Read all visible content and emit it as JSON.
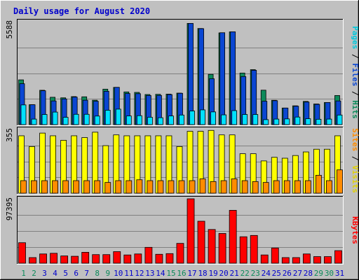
{
  "chart_data": {
    "type": "bar",
    "title": "Daily usage for August 2020",
    "days": [
      "1",
      "2",
      "3",
      "4",
      "5",
      "6",
      "7",
      "8",
      "9",
      "10",
      "11",
      "12",
      "13",
      "14",
      "15",
      "16",
      "17",
      "18",
      "19",
      "20",
      "21",
      "22",
      "23",
      "24",
      "25",
      "26",
      "27",
      "28",
      "29",
      "30",
      "31"
    ],
    "weekend_days": [
      "1",
      "2",
      "8",
      "9",
      "15",
      "16",
      "22",
      "23",
      "29",
      "30"
    ],
    "panels": [
      {
        "name": "traffic",
        "ymax_label": "5588",
        "ymax": 5588,
        "series": [
          {
            "name": "Hits",
            "color": "#0c8a5a",
            "values": [
              2430,
              1080,
              1865,
              1485,
              1455,
              1520,
              1510,
              1325,
              1925,
              2020,
              1775,
              1750,
              1635,
              1645,
              1655,
              1710,
              5495,
              5220,
              2730,
              4980,
              5035,
              2800,
              2985,
              1870,
              1320,
              900,
              1020,
              1260,
              1120,
              1200,
              1580
            ]
          },
          {
            "name": "Files",
            "color": "#0a46d2",
            "values": [
              2220,
              1080,
              1840,
              1285,
              1395,
              1495,
              1325,
              1270,
              1810,
              2025,
              1690,
              1680,
              1580,
              1585,
              1630,
              1700,
              5495,
              5210,
              2490,
              4990,
              5040,
              2610,
              2950,
              1270,
              1300,
              900,
              1000,
              1225,
              1100,
              1200,
              1285
            ]
          },
          {
            "name": "Pages",
            "color": "#00e0ff",
            "values": [
              1070,
              300,
              550,
              680,
              395,
              560,
              560,
              465,
              780,
              840,
              470,
              485,
              400,
              375,
              470,
              520,
              740,
              800,
              690,
              530,
              760,
              550,
              550,
              270,
              300,
              310,
              410,
              320,
              290,
              300,
              520
            ]
          }
        ]
      },
      {
        "name": "visitors",
        "ymax_label": "355",
        "ymax": 355,
        "series": [
          {
            "name": "Visits",
            "color": "#ffff00",
            "values": [
              320,
              260,
              335,
              320,
              295,
              320,
              310,
              340,
              265,
              325,
              320,
              320,
              320,
              320,
              320,
              260,
              345,
              345,
              350,
              325,
              325,
              220,
              220,
              180,
              200,
              195,
              210,
              230,
              245,
              245,
              320
            ]
          },
          {
            "name": "Sites",
            "color": "#ff8c00",
            "values": [
              70,
              70,
              70,
              70,
              70,
              70,
              70,
              70,
              60,
              70,
              70,
              75,
              70,
              70,
              70,
              70,
              70,
              80,
              65,
              70,
              80,
              70,
              65,
              60,
              70,
              70,
              70,
              70,
              100,
              70,
              130
            ]
          }
        ]
      },
      {
        "name": "volume",
        "ymax_label": "97395",
        "ymax": 97395,
        "series": [
          {
            "name": "KBytes",
            "color": "#ff0000",
            "values": [
              31000,
              8500,
              14000,
              15000,
              11000,
              10500,
              16500,
              13000,
              13000,
              17500,
              12500,
              14000,
              24000,
              13500,
              14500,
              30000,
              97395,
              63500,
              51000,
              45000,
              80000,
              40000,
              42000,
              12500,
              23000,
              8500,
              8500,
              14000,
              10000,
              10000,
              19000
            ]
          }
        ]
      }
    ],
    "side_labels": {
      "traffic": [
        {
          "text": "Pages",
          "color": "#00c8dc"
        },
        {
          "text": " / ",
          "color": "#000000"
        },
        {
          "text": "Files",
          "color": "#0a46d2"
        },
        {
          "text": " / ",
          "color": "#000000"
        },
        {
          "text": "Hits",
          "color": "#0c8a5a"
        }
      ],
      "visitors": [
        {
          "text": "Sites",
          "color": "#ff8c00"
        },
        {
          "text": " / ",
          "color": "#000000"
        },
        {
          "text": "Visits",
          "color": "#e0d000"
        }
      ],
      "volume": [
        {
          "text": "KBytes",
          "color": "#ff0000"
        }
      ]
    },
    "colors": {
      "background": "#c0c0c0",
      "title": "#0000cc",
      "day_label": "#0000cc",
      "weekend_label": "#0c8a5a",
      "gridline": "#808080"
    },
    "grid": true,
    "legend": "right"
  }
}
